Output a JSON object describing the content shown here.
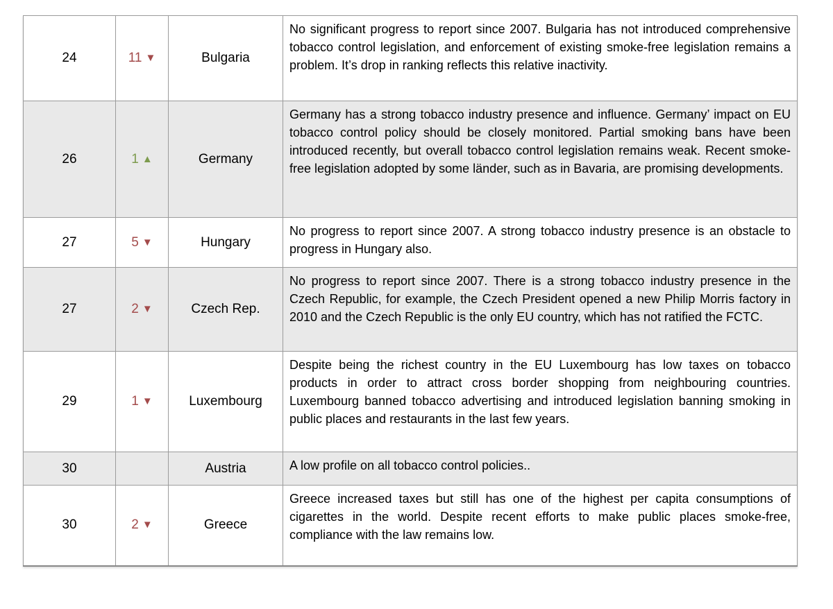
{
  "colors": {
    "arrow_down": "#a34b4b",
    "arrow_up": "#7d9b4e",
    "row_alt_bg": "#e9e9e9",
    "grid_line": "#9b9b9b"
  },
  "table": {
    "columns": [
      "rank",
      "change",
      "country",
      "description"
    ],
    "rows": [
      {
        "rank": "24",
        "change": "11",
        "arrow": "▼",
        "direction": "down",
        "change_color": "#a34b4b",
        "country": "Bulgaria",
        "description": "No significant progress to report since 2007. Bulgaria has not introduced comprehensive tobacco control legislation, and enforcement of existing smoke-free legislation remains a problem. It’s drop in ranking reflects this relative inactivity."
      },
      {
        "rank": "26",
        "change": "1",
        "arrow": "▲",
        "direction": "up",
        "change_color": "#7d9b4e",
        "country": "Germany",
        "description": "Germany has a strong tobacco industry presence and influence. Germany’ impact on EU tobacco control policy should be closely monitored. Partial smoking bans have been introduced recently, but overall tobacco control legislation remains weak. Recent smoke-free legislation adopted by some länder, such as in Bavaria, are promising developments."
      },
      {
        "rank": "27",
        "change": "5",
        "arrow": "▼",
        "direction": "down",
        "change_color": "#a34b4b",
        "country": "Hungary",
        "description": "No progress to report since 2007. A strong tobacco industry presence is an obstacle to progress in Hungary also."
      },
      {
        "rank": "27",
        "change": "2",
        "arrow": "▼",
        "direction": "down",
        "change_color": "#a34b4b",
        "country": "Czech Rep.",
        "description": "No progress to report since 2007. There is a strong tobacco industry presence in the Czech Republic, for example, the Czech President opened a new Philip Morris factory in 2010 and the Czech Republic is the only EU country, which has not ratified the FCTC."
      },
      {
        "rank": "29",
        "change": "1",
        "arrow": "▼",
        "direction": "down",
        "change_color": "#a34b4b",
        "country": "Luxembourg",
        "description": "Despite being the richest country in the EU Luxembourg has low taxes on tobacco products in order to attract cross border shopping from neighbouring countries. Luxembourg banned tobacco advertising and introduced legislation banning smoking in public places and restaurants in the last few years."
      },
      {
        "rank": "30",
        "change": "",
        "arrow": "",
        "direction": "none",
        "change_color": "",
        "country": "Austria",
        "description": "A low profile on all tobacco control policies.."
      },
      {
        "rank": "30",
        "change": "2",
        "arrow": "▼",
        "direction": "down",
        "change_color": "#a34b4b",
        "country": "Greece",
        "description": "Greece increased taxes but still has one of the highest per capita consumptions of cigarettes in the world. Despite recent efforts to make public places smoke-free, compliance with the law remains low."
      }
    ]
  }
}
